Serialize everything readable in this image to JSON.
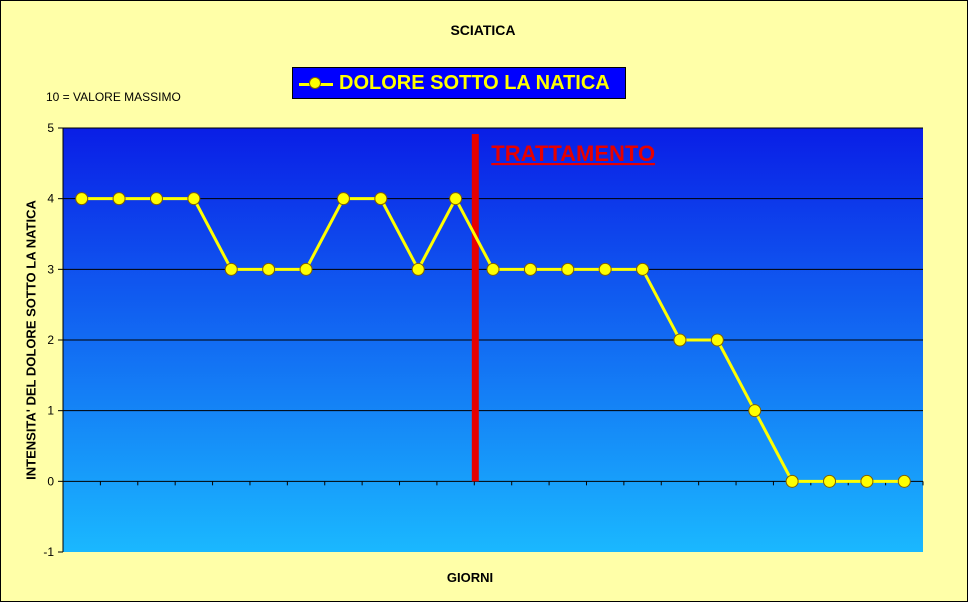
{
  "chart_data": {
    "type": "line",
    "title": "SCIATICA",
    "note": "10 = VALORE MASSIMO",
    "xlabel": "GIORNI",
    "ylabel": "INTENSITA' DEL DOLORE  SOTTO LA NATICA",
    "ylim": [
      -1,
      5
    ],
    "yticks": [
      "-1",
      "0",
      "1",
      "2",
      "3",
      "4",
      "5"
    ],
    "grid": true,
    "legend_position": "top",
    "series": [
      {
        "name": "DOLORE SOTTO LA NATICA",
        "x": [
          1,
          2,
          3,
          4,
          5,
          6,
          7,
          8,
          9,
          10,
          11,
          12,
          13,
          14,
          15,
          16,
          17,
          18,
          19,
          20,
          21,
          22,
          23
        ],
        "values": [
          4,
          4,
          4,
          4,
          3,
          3,
          3,
          4,
          4,
          3,
          4,
          3,
          3,
          3,
          3,
          3,
          2,
          2,
          1,
          0,
          0,
          0,
          0
        ]
      }
    ],
    "annotation": {
      "label": "TRATTAMENTO",
      "x": 11.5
    },
    "colors": {
      "background": "#ffffa8",
      "plot_top": "#0a1ee6",
      "plot_bottom": "#1ab8ff",
      "series_line": "#ffff00",
      "marker_fill": "#ffff00",
      "marker_edge": "#806000",
      "annotation": "#e60000",
      "legend_bg": "#0000ff"
    }
  }
}
